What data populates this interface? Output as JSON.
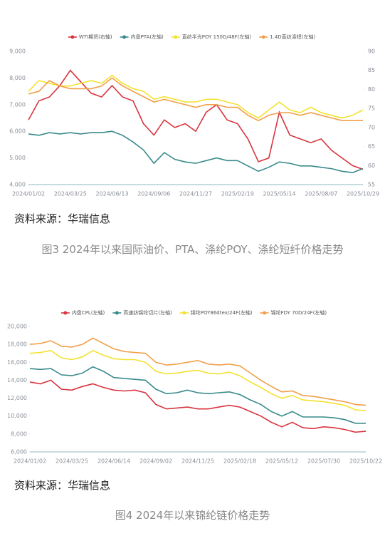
{
  "chart_data": [
    {
      "type": "line",
      "categories": [
        "2024/01/02",
        null,
        null,
        null,
        "2024/03/25",
        null,
        null,
        null,
        "2024/06/13",
        null,
        null,
        null,
        "2024/09/06",
        null,
        null,
        null,
        "2024/11/27",
        null,
        null,
        null,
        "2025/02/19",
        null,
        null,
        null,
        "2025/05/14",
        null,
        null,
        null,
        "2025/08/07",
        null,
        null,
        null,
        "2025/10/29"
      ],
      "series": [
        {
          "name": "WTI期货(右轴)",
          "color": "#d9343f",
          "axis": "y2",
          "values": [
            72,
            77,
            78,
            81,
            85,
            82,
            79,
            78,
            81,
            78,
            77,
            71,
            68,
            72,
            70,
            71,
            69,
            74,
            76,
            72,
            71,
            67,
            61,
            62,
            74,
            68,
            67,
            66,
            67,
            64,
            62,
            60,
            59
          ]
        },
        {
          "name": "内盘PTA(左轴)",
          "color": "#3a8a8c",
          "values": [
            5900,
            5850,
            5950,
            5900,
            5950,
            5900,
            5950,
            5950,
            6000,
            5850,
            5600,
            5300,
            4800,
            5200,
            4950,
            4850,
            4800,
            4900,
            5000,
            4900,
            4900,
            4700,
            4500,
            4650,
            4850,
            4800,
            4700,
            4700,
            4650,
            4600,
            4500,
            4450,
            4600
          ]
        },
        {
          "name": "直纺半光POY 150D/48F(左轴)",
          "color": "#f2e230",
          "values": [
            7500,
            7900,
            7800,
            7700,
            7700,
            7800,
            7900,
            7800,
            8100,
            7800,
            7600,
            7500,
            7200,
            7300,
            7200,
            7100,
            7100,
            7200,
            7200,
            7100,
            7000,
            6700,
            6500,
            6800,
            7100,
            6800,
            6700,
            6900,
            6700,
            6600,
            6500,
            6600,
            6800
          ]
        },
        {
          "name": "1.4D直纺涤短(左轴)",
          "color": "#f0a04a",
          "values": [
            7400,
            7500,
            7900,
            7700,
            7600,
            7600,
            7600,
            7700,
            8000,
            7700,
            7500,
            7300,
            7100,
            7200,
            7100,
            7000,
            6900,
            7000,
            7000,
            6900,
            6900,
            6600,
            6400,
            6600,
            6700,
            6700,
            6600,
            6700,
            6600,
            6500,
            6400,
            6400,
            6400
          ]
        }
      ],
      "ylim": [
        4000,
        9000
      ],
      "yticks": [
        {
          "value": 4000,
          "label": "4,000"
        },
        {
          "value": 5000,
          "label": "5,000"
        },
        {
          "value": 6000,
          "label": "6,000"
        },
        {
          "value": 7000,
          "label": "7,000"
        },
        {
          "value": 8000,
          "label": "8,000"
        },
        {
          "value": 9000,
          "label": "9,000"
        }
      ],
      "y2lim": [
        55,
        90
      ],
      "y2ticks": [
        55,
        60,
        65,
        70,
        75,
        80,
        85,
        90
      ],
      "legend": "top"
    },
    {
      "type": "line",
      "categories": [
        "2024/01/02",
        null,
        null,
        null,
        "2024/03/25",
        null,
        null,
        null,
        "2024/06/14",
        null,
        null,
        null,
        "2024/09/02",
        null,
        null,
        null,
        "2024/11/25",
        null,
        null,
        null,
        "2025/02/18",
        null,
        null,
        null,
        "2025/05/12",
        null,
        null,
        null,
        "2025/07/30",
        null,
        null,
        null,
        "2025/10/22"
      ],
      "series": [
        {
          "name": "内盘CPL(左轴)",
          "color": "#d9343f",
          "values": [
            13800,
            13600,
            14000,
            13000,
            12900,
            13300,
            13600,
            13200,
            12900,
            12800,
            12900,
            12600,
            11300,
            10800,
            10900,
            11000,
            10800,
            10800,
            11000,
            11200,
            11000,
            10500,
            10000,
            9300,
            8800,
            9300,
            8700,
            8600,
            8800,
            8700,
            8500,
            8200,
            8300
          ]
        },
        {
          "name": "高速纺锦纶切片(左轴)",
          "color": "#3a8a8c",
          "values": [
            15300,
            15200,
            15300,
            14600,
            14500,
            14800,
            15500,
            15000,
            14300,
            14200,
            14100,
            14000,
            13000,
            12500,
            12600,
            12900,
            12600,
            12500,
            12600,
            12700,
            12400,
            11800,
            11300,
            10500,
            10000,
            10500,
            9900,
            9900,
            9900,
            9800,
            9600,
            9200,
            9200
          ]
        },
        {
          "name": "锦纶POY86dtex/24F(左轴)",
          "color": "#f2e230",
          "values": [
            17000,
            17100,
            17300,
            16500,
            16300,
            16600,
            17300,
            16800,
            16400,
            16300,
            16300,
            16000,
            15000,
            14700,
            14800,
            15000,
            15100,
            14800,
            14700,
            14900,
            14500,
            13800,
            13200,
            12500,
            12000,
            12300,
            11800,
            11700,
            11600,
            11400,
            11200,
            10700,
            10600
          ]
        },
        {
          "name": "锦纶FDY 70D/24F(左轴)",
          "color": "#f0a04a",
          "values": [
            18000,
            18100,
            18400,
            17800,
            17700,
            18000,
            18700,
            18100,
            17500,
            17200,
            17100,
            17000,
            16000,
            15700,
            15800,
            16000,
            16200,
            15800,
            15700,
            15800,
            15600,
            14800,
            14000,
            13300,
            12700,
            12800,
            12300,
            12200,
            12000,
            11800,
            11600,
            11300,
            11200
          ]
        }
      ],
      "ylim": [
        6000,
        20000
      ],
      "yticks": [
        {
          "value": 6000,
          "label": "6,000"
        },
        {
          "value": 8000,
          "label": "8,000"
        },
        {
          "value": 10000,
          "label": "10,000"
        },
        {
          "value": 12000,
          "label": "12,000"
        },
        {
          "value": 14000,
          "label": "14,000"
        },
        {
          "value": 16000,
          "label": "16,000"
        },
        {
          "value": 18000,
          "label": "18,000"
        },
        {
          "value": 20000,
          "label": "20,000"
        }
      ],
      "legend": "top"
    }
  ],
  "sources": [
    "资料来源：华瑞信息",
    "资料来源：华瑞信息"
  ],
  "captions": [
    "图3  2024年以来国际油价、PTA、涤纶POY、涤纶短纤价格走势",
    "图4  2024年以来锦纶链价格走势"
  ]
}
